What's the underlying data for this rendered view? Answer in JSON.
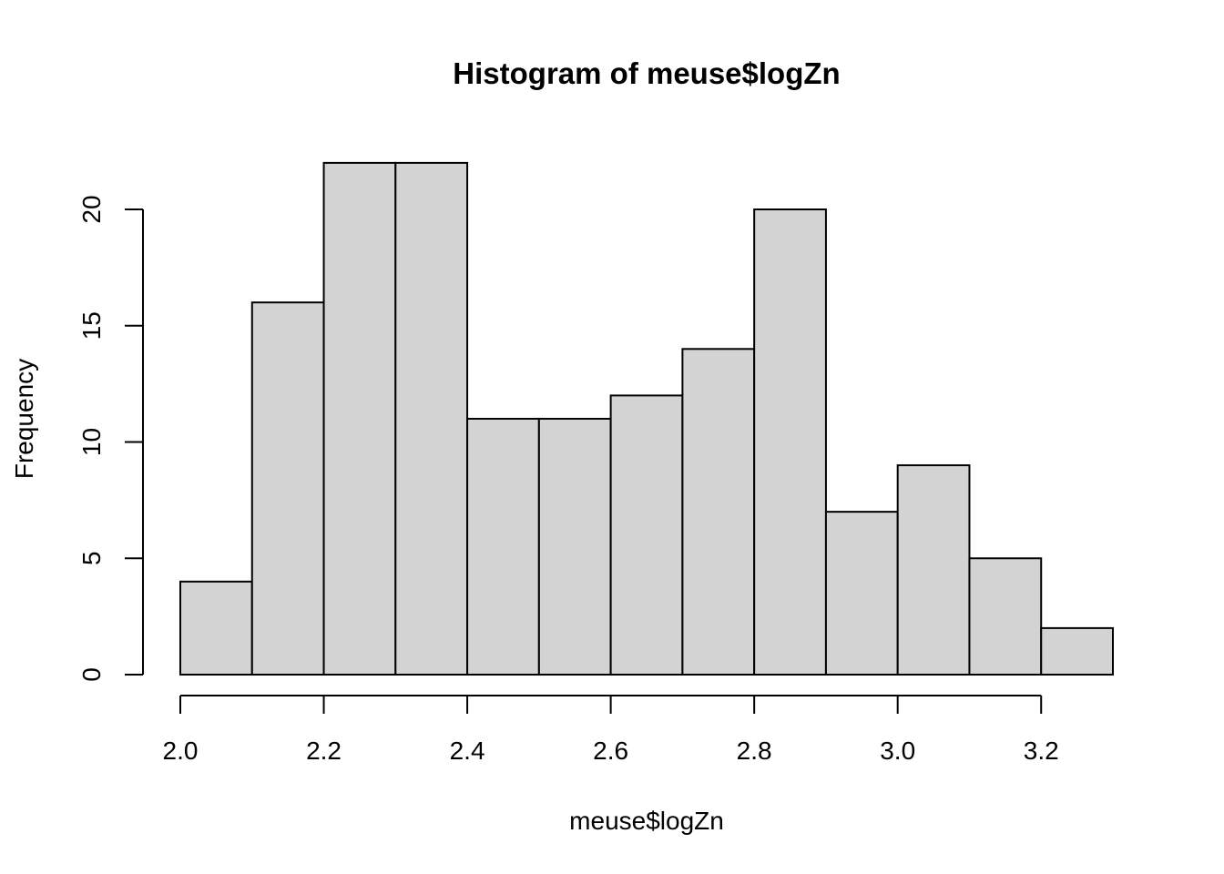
{
  "chart_data": {
    "type": "bar",
    "title": "Histogram of meuse$logZn",
    "xlabel": "meuse$logZn",
    "ylabel": "Frequency",
    "bin_edges": [
      2.0,
      2.1,
      2.2,
      2.3,
      2.4,
      2.5,
      2.6,
      2.7,
      2.8,
      2.9,
      3.0,
      3.1,
      3.2,
      3.3
    ],
    "values": [
      4,
      16,
      22,
      22,
      11,
      11,
      12,
      14,
      20,
      7,
      9,
      5,
      2
    ],
    "xlim": [
      2.0,
      3.3
    ],
    "ylim": [
      0,
      22
    ],
    "x_ticks": [
      "2.0",
      "2.2",
      "2.4",
      "2.6",
      "2.8",
      "3.0",
      "3.2"
    ],
    "y_ticks": [
      "0",
      "5",
      "10",
      "15",
      "20"
    ],
    "bar_fill": "#d3d3d3",
    "bar_stroke": "#000000",
    "grid": false,
    "legend": "none"
  }
}
